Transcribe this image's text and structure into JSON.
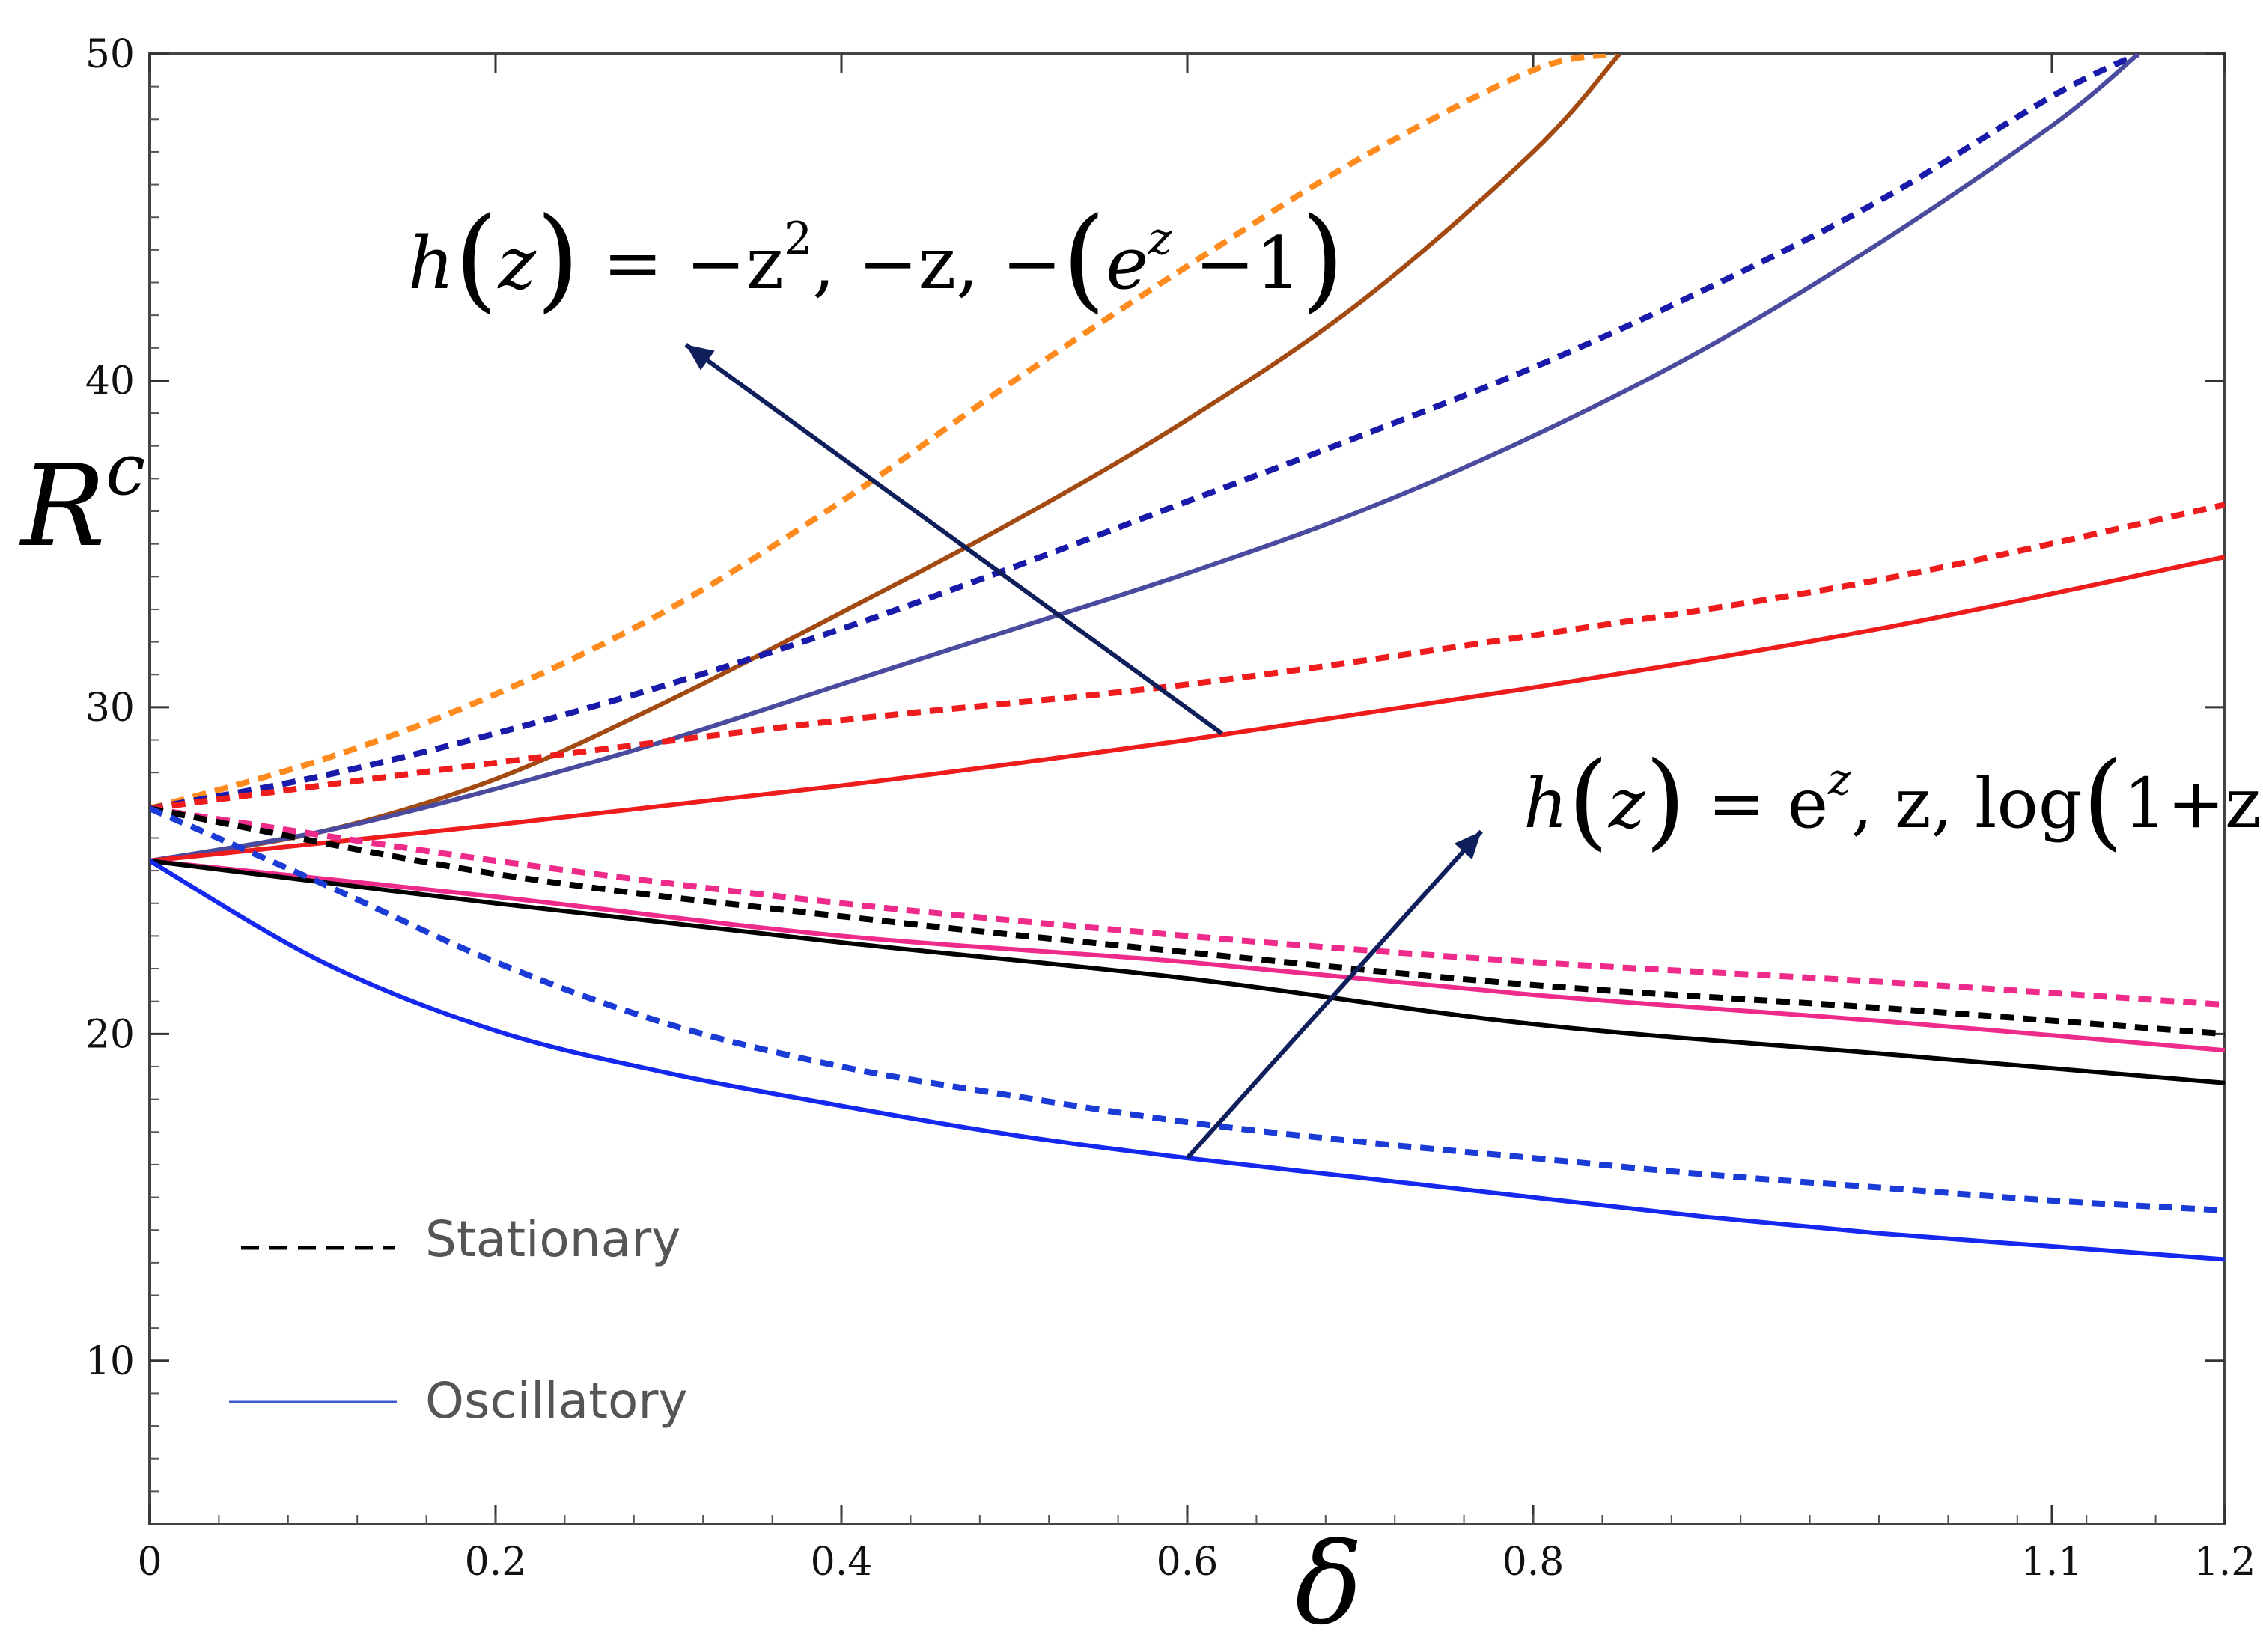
{
  "chart_data": {
    "type": "line",
    "title": "",
    "xlabel": "δ",
    "ylabel_main": "R",
    "ylabel_sup": "c",
    "xlim": [
      0,
      1.2
    ],
    "ylim": [
      5,
      50
    ],
    "x_ticks": [
      0,
      0.2,
      0.4,
      0.6,
      0.8,
      1.1,
      1.2
    ],
    "x_tick_labels": [
      "0",
      "0.2",
      "0.4",
      "0.6",
      "0.8",
      "1.1",
      "1.2"
    ],
    "x_tick_positions": [
      0,
      0.2,
      0.4,
      0.6,
      0.8,
      1.1,
      1.2
    ],
    "y_ticks": [
      10,
      20,
      30,
      40,
      50
    ],
    "y_tick_labels": [
      "10",
      "20",
      "30",
      "40",
      "50"
    ],
    "grid": false,
    "legend": {
      "placement": "bottom-left",
      "entries": [
        {
          "label": "Stationary",
          "style": "dashed",
          "color": "#000000"
        },
        {
          "label": "Oscillatory",
          "style": "solid",
          "color": "#3b5bd6"
        }
      ]
    },
    "annotations": [
      {
        "text_parts": [
          "h",
          "(",
          "z",
          ")",
          " = −z",
          "2",
          ", −z, −",
          "(",
          "e",
          "z",
          " −1",
          ")"
        ],
        "arrow_from": [
          0.62,
          29.2
        ],
        "arrow_to": [
          0.31,
          41.1
        ]
      },
      {
        "text_parts": [
          "h",
          "(",
          "z",
          ")",
          " = e",
          "z",
          ", z, log",
          "(",
          "1+z",
          ")"
        ],
        "arrow_from": [
          0.6,
          16.2
        ],
        "arrow_to": [
          0.77,
          26.2
        ]
      }
    ],
    "series": [
      {
        "name": "h=-z^2 stationary",
        "kind": "stationary",
        "color": "#ff8a1e",
        "x": [
          0,
          0.1,
          0.2,
          0.3,
          0.4,
          0.5,
          0.6,
          0.7,
          0.8,
          0.85
        ],
        "y": [
          26.9,
          28.4,
          30.4,
          33.0,
          36.3,
          40.0,
          43.5,
          46.8,
          49.5,
          50.0
        ]
      },
      {
        "name": "h=-z^2 oscillatory",
        "kind": "oscillatory",
        "color": "#a34a12",
        "x": [
          0,
          0.1,
          0.2,
          0.3,
          0.4,
          0.5,
          0.6,
          0.7,
          0.8,
          0.85
        ],
        "y": [
          25.3,
          26.2,
          27.8,
          30.2,
          32.9,
          35.7,
          38.8,
          42.4,
          47.0,
          50.0
        ]
      },
      {
        "name": "h=-z stationary",
        "kind": "stationary",
        "color": "#1a1aaa",
        "x": [
          0,
          0.1,
          0.2,
          0.3,
          0.4,
          0.5,
          0.6,
          0.7,
          0.8,
          0.9,
          1.0,
          1.1,
          1.15
        ],
        "y": [
          26.9,
          27.9,
          29.2,
          30.7,
          32.4,
          34.3,
          36.3,
          38.3,
          40.4,
          42.8,
          45.5,
          48.7,
          50.0
        ]
      },
      {
        "name": "h=-z oscillatory",
        "kind": "oscillatory",
        "color": "#4a4a9e",
        "x": [
          0,
          0.1,
          0.2,
          0.3,
          0.4,
          0.5,
          0.6,
          0.7,
          0.8,
          0.9,
          1.0,
          1.1,
          1.15
        ],
        "y": [
          25.3,
          26.2,
          27.5,
          29.0,
          30.7,
          32.4,
          34.1,
          36.0,
          38.3,
          41.0,
          44.2,
          47.8,
          50.0
        ]
      },
      {
        "name": "h=-(e^z-1) stationary",
        "kind": "stationary",
        "color": "#ee1c1c",
        "x": [
          0,
          0.2,
          0.4,
          0.6,
          0.8,
          1.0,
          1.2
        ],
        "y": [
          26.9,
          28.3,
          29.6,
          30.7,
          32.2,
          33.9,
          36.2
        ]
      },
      {
        "name": "h=-(e^z-1) oscillatory",
        "kind": "oscillatory",
        "color": "#ee1c1c",
        "x": [
          0,
          0.2,
          0.4,
          0.6,
          0.8,
          1.0,
          1.2
        ],
        "y": [
          25.3,
          26.4,
          27.6,
          29.0,
          30.6,
          32.4,
          34.6
        ]
      },
      {
        "name": "h=log(1+z) stationary",
        "kind": "stationary",
        "color": "#ee2a8a",
        "x": [
          0,
          0.2,
          0.4,
          0.6,
          0.8,
          1.0,
          1.2
        ],
        "y": [
          26.9,
          25.3,
          24.0,
          23.0,
          22.2,
          21.6,
          20.9
        ]
      },
      {
        "name": "h=log(1+z) oscillatory",
        "kind": "oscillatory",
        "color": "#ee2a8a",
        "x": [
          0,
          0.2,
          0.4,
          0.6,
          0.8,
          1.0,
          1.2
        ],
        "y": [
          25.3,
          24.2,
          23.0,
          22.2,
          21.2,
          20.4,
          19.5
        ]
      },
      {
        "name": "h=z stationary",
        "kind": "stationary",
        "color": "#000000",
        "x": [
          0,
          0.2,
          0.4,
          0.6,
          0.8,
          1.0,
          1.2
        ],
        "y": [
          26.9,
          24.9,
          23.6,
          22.5,
          21.5,
          20.8,
          20.0
        ]
      },
      {
        "name": "h=z oscillatory",
        "kind": "oscillatory",
        "color": "#000000",
        "x": [
          0,
          0.2,
          0.4,
          0.6,
          0.8,
          1.0,
          1.2
        ],
        "y": [
          25.3,
          24.0,
          22.8,
          21.7,
          20.3,
          19.4,
          18.5
        ]
      },
      {
        "name": "h=e^z stationary",
        "kind": "stationary",
        "color": "#1a3bd6",
        "x": [
          0,
          0.1,
          0.2,
          0.3,
          0.4,
          0.5,
          0.6,
          0.7,
          0.8,
          0.9,
          1.0,
          1.1,
          1.2
        ],
        "y": [
          26.9,
          24.6,
          22.2,
          20.3,
          19.0,
          18.1,
          17.3,
          16.7,
          16.2,
          15.7,
          15.3,
          14.9,
          14.6
        ]
      },
      {
        "name": "h=e^z oscillatory",
        "kind": "oscillatory",
        "color": "#1428f0",
        "x": [
          0,
          0.1,
          0.2,
          0.3,
          0.4,
          0.5,
          0.6,
          0.7,
          0.8,
          0.9,
          1.0,
          1.1,
          1.2
        ],
        "y": [
          25.3,
          22.2,
          20.1,
          18.8,
          17.8,
          16.9,
          16.2,
          15.6,
          15.0,
          14.4,
          13.9,
          13.5,
          13.1
        ]
      }
    ]
  }
}
